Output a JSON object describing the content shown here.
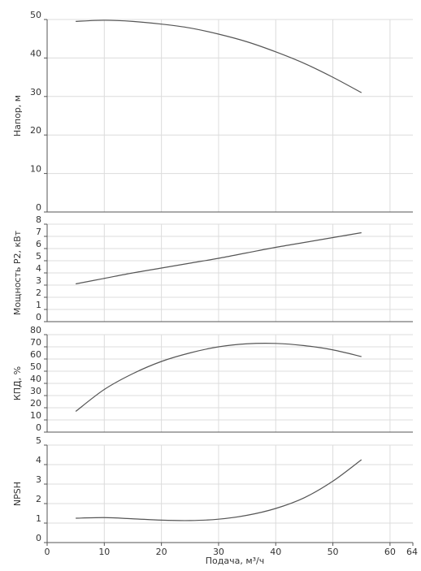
{
  "chart_data": {
    "type": "line",
    "x_axis": {
      "label": "Подача, м³/ч",
      "range": [
        0,
        64
      ],
      "ticks": [
        0,
        10,
        20,
        30,
        40,
        50,
        60,
        64
      ],
      "grid_ticks": [
        10,
        20,
        30,
        40,
        50,
        60
      ]
    },
    "grid": true,
    "line_color": "#555555",
    "grid_color": "#dcdcdc",
    "panels": [
      {
        "key": "head",
        "ylabel": "Напор, м",
        "ylim": [
          0,
          50
        ],
        "yticks": [
          0,
          10,
          20,
          30,
          40,
          50
        ],
        "series": {
          "x": [
            5,
            10,
            15,
            20,
            25,
            30,
            35,
            40,
            45,
            50,
            55
          ],
          "y": [
            49.5,
            49.8,
            49.5,
            48.8,
            47.8,
            46.2,
            44.2,
            41.6,
            38.6,
            35.0,
            31.0
          ]
        }
      },
      {
        "key": "power",
        "ylabel": "Мощность P2, кВт",
        "ylim": [
          0,
          8
        ],
        "yticks": [
          0,
          1,
          2,
          3,
          4,
          5,
          6,
          7,
          8
        ],
        "series": {
          "x": [
            5,
            10,
            15,
            20,
            25,
            30,
            35,
            40,
            45,
            50,
            55
          ],
          "y": [
            3.1,
            3.55,
            4.0,
            4.4,
            4.8,
            5.2,
            5.65,
            6.1,
            6.5,
            6.9,
            7.3
          ]
        }
      },
      {
        "key": "efficiency",
        "ylabel": "КПД, %",
        "ylim": [
          0,
          80
        ],
        "yticks": [
          0,
          10,
          20,
          30,
          40,
          50,
          60,
          70,
          80
        ],
        "series": {
          "x": [
            5,
            10,
            15,
            20,
            25,
            30,
            35,
            40,
            45,
            50,
            55
          ],
          "y": [
            17,
            35,
            48,
            58,
            65,
            70,
            72.5,
            72.8,
            71,
            67.5,
            62
          ]
        }
      },
      {
        "key": "npsh",
        "ylabel": "NPSH",
        "ylim": [
          0,
          5
        ],
        "yticks": [
          0,
          1,
          2,
          3,
          4,
          5
        ],
        "series": {
          "x": [
            5,
            10,
            15,
            20,
            25,
            30,
            35,
            40,
            45,
            50,
            55
          ],
          "y": [
            1.25,
            1.28,
            1.22,
            1.15,
            1.13,
            1.2,
            1.4,
            1.75,
            2.3,
            3.15,
            4.25
          ]
        }
      }
    ]
  }
}
